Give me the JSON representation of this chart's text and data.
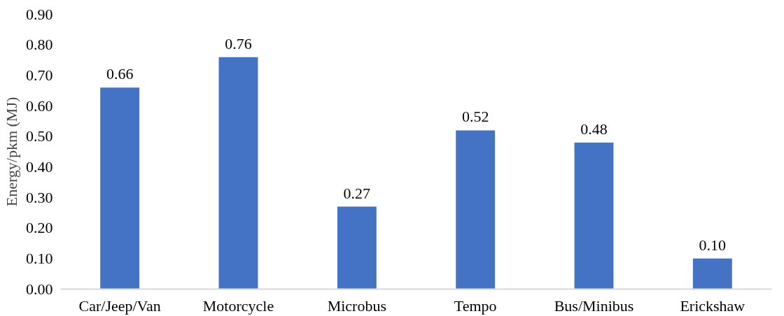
{
  "chart_data": {
    "type": "bar",
    "ylabel": "Energy/pkm (MJ)",
    "categories": [
      "Car/Jeep/Van",
      "Motorcycle",
      "Microbus",
      "Tempo",
      "Bus/Minibus",
      "Erickshaw"
    ],
    "values": [
      0.66,
      0.76,
      0.27,
      0.52,
      0.48,
      0.1
    ],
    "value_labels": [
      "0.66",
      "0.76",
      "0.27",
      "0.52",
      "0.48",
      "0.10"
    ],
    "color": "#4472c4",
    "ylim": [
      0,
      0.9
    ],
    "yticks": [
      {
        "value": 0,
        "label": "0.00"
      },
      {
        "value": 0.1,
        "label": "0.10"
      },
      {
        "value": 0.2,
        "label": "0.20"
      },
      {
        "value": 0.3,
        "label": "0.30"
      },
      {
        "value": 0.4,
        "label": "0.40"
      },
      {
        "value": 0.5,
        "label": "0.50"
      },
      {
        "value": 0.6,
        "label": "0.60"
      },
      {
        "value": 0.7,
        "label": "0.70"
      },
      {
        "value": 0.8,
        "label": "0.80"
      },
      {
        "value": 0.9,
        "label": "0.90"
      }
    ],
    "grid": false
  }
}
